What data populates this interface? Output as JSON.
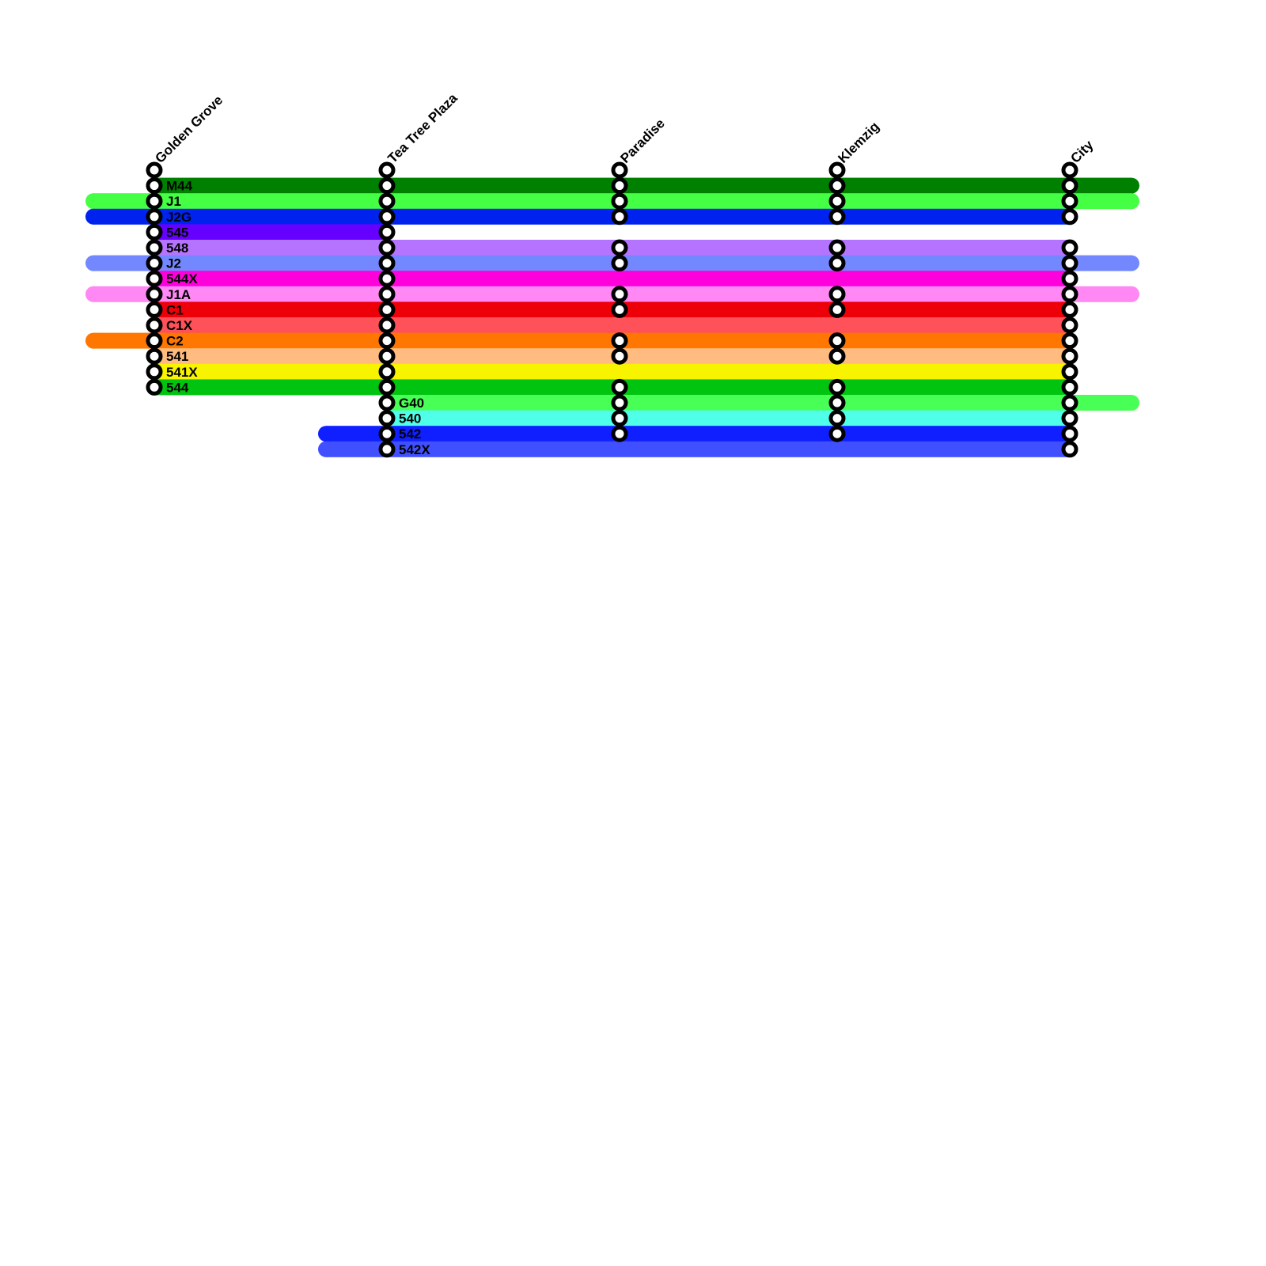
{
  "stations": [
    "Golden Grove",
    "Tea Tree Plaza",
    "Paradise",
    "Klemzig",
    "City"
  ],
  "routes": [
    {
      "name": "M44",
      "color": "#008000",
      "from": "Golden Grove",
      "extends_left": false,
      "extends_right": true,
      "stops": [
        "Golden Grove",
        "Tea Tree Plaza",
        "Paradise",
        "Klemzig",
        "City"
      ]
    },
    {
      "name": "J1",
      "color": "#44ff44",
      "from": "Golden Grove",
      "extends_left": true,
      "extends_right": true,
      "stops": [
        "Golden Grove",
        "Tea Tree Plaza",
        "Paradise",
        "Klemzig",
        "City"
      ]
    },
    {
      "name": "J2G",
      "color": "#0022ee",
      "from": "Golden Grove",
      "extends_left": true,
      "extends_right": false,
      "stops": [
        "Golden Grove",
        "Tea Tree Plaza",
        "Paradise",
        "Klemzig",
        "City"
      ]
    },
    {
      "name": "545",
      "color": "#6600ff",
      "from": "Golden Grove",
      "to": "Tea Tree Plaza",
      "extends_left": false,
      "extends_right": false,
      "stops": [
        "Golden Grove",
        "Tea Tree Plaza"
      ]
    },
    {
      "name": "548",
      "color": "#b574ff",
      "from": "Golden Grove",
      "extends_left": false,
      "extends_right": false,
      "stops": [
        "Golden Grove",
        "Tea Tree Plaza",
        "Paradise",
        "Klemzig",
        "City"
      ]
    },
    {
      "name": "J2",
      "color": "#7388ff",
      "from": "Golden Grove",
      "extends_left": true,
      "extends_right": true,
      "stops": [
        "Golden Grove",
        "Tea Tree Plaza",
        "Paradise",
        "Klemzig",
        "City"
      ]
    },
    {
      "name": "544X",
      "color": "#ff00dd",
      "from": "Golden Grove",
      "extends_left": false,
      "extends_right": false,
      "stops": [
        "Golden Grove",
        "Tea Tree Plaza",
        "City"
      ]
    },
    {
      "name": "J1A",
      "color": "#ff88f5",
      "from": "Golden Grove",
      "extends_left": true,
      "extends_right": true,
      "stops": [
        "Golden Grove",
        "Tea Tree Plaza",
        "Paradise",
        "Klemzig",
        "City"
      ]
    },
    {
      "name": "C1",
      "color": "#ee0008",
      "from": "Golden Grove",
      "extends_left": false,
      "extends_right": false,
      "stops": [
        "Golden Grove",
        "Tea Tree Plaza",
        "Paradise",
        "Klemzig",
        "City"
      ]
    },
    {
      "name": "C1X",
      "color": "#ff5159",
      "from": "Golden Grove",
      "extends_left": false,
      "extends_right": false,
      "stops": [
        "Golden Grove",
        "Tea Tree Plaza",
        "City"
      ]
    },
    {
      "name": "C2",
      "color": "#ff7700",
      "from": "Golden Grove",
      "extends_left": true,
      "extends_right": false,
      "stops": [
        "Golden Grove",
        "Tea Tree Plaza",
        "Paradise",
        "Klemzig",
        "City"
      ]
    },
    {
      "name": "541",
      "color": "#ffbb80",
      "from": "Golden Grove",
      "extends_left": false,
      "extends_right": false,
      "stops": [
        "Golden Grove",
        "Tea Tree Plaza",
        "Paradise",
        "Klemzig",
        "City"
      ]
    },
    {
      "name": "541X",
      "color": "#f8f400",
      "from": "Golden Grove",
      "extends_left": false,
      "extends_right": false,
      "stops": [
        "Golden Grove",
        "Tea Tree Plaza",
        "City"
      ]
    },
    {
      "name": "544",
      "color": "#00c410",
      "from": "Golden Grove",
      "extends_left": false,
      "extends_right": false,
      "stops": [
        "Golden Grove",
        "Tea Tree Plaza",
        "Paradise",
        "Klemzig",
        "City"
      ]
    },
    {
      "name": "G40",
      "color": "#48ff55",
      "from": "Tea Tree Plaza",
      "extends_left": false,
      "extends_right": true,
      "stops": [
        "Tea Tree Plaza",
        "Paradise",
        "Klemzig",
        "City"
      ]
    },
    {
      "name": "540",
      "color": "#50ffea",
      "from": "Tea Tree Plaza",
      "extends_left": false,
      "extends_right": false,
      "stops": [
        "Tea Tree Plaza",
        "Paradise",
        "Klemzig",
        "City"
      ]
    },
    {
      "name": "542",
      "color": "#0f1fff",
      "from": "Tea Tree Plaza",
      "extends_left": true,
      "extends_right": false,
      "stops": [
        "Tea Tree Plaza",
        "Paradise",
        "Klemzig",
        "City"
      ]
    },
    {
      "name": "542X",
      "color": "#4050ff",
      "from": "Tea Tree Plaza",
      "extends_left": true,
      "extends_right": false,
      "stops": [
        "Tea Tree Plaza",
        "City"
      ]
    }
  ]
}
